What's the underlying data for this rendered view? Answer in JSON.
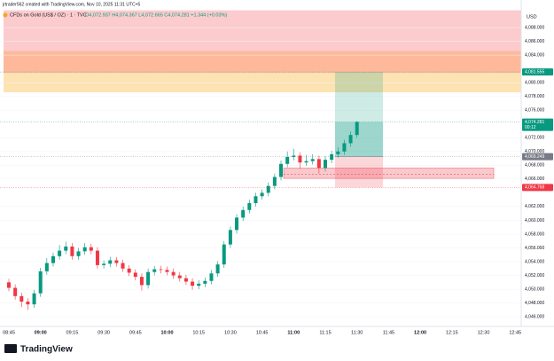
{
  "header": {
    "credit": "jrtrader562 created with TradingView.com, Nov 10, 2025 11:31 UTC+5",
    "legend": "CFDs on Gold (US$ / OZ) · 1 · TVC",
    "ohlc": "O4,072.937 H4,074.367 L4,072.665 C4,074.281 +1.344 (+0.03%)",
    "logo": "TradingView"
  },
  "chart_data": {
    "type": "candlestick",
    "currency": "USD",
    "up_color": "#089981",
    "down_color": "#f23645",
    "open": [
      4051.0,
      4050.2,
      4049.0,
      4048.2,
      4047.8,
      4049.4,
      4052.6,
      4053.8,
      4054.8,
      4055.6,
      4056.2,
      4054.8,
      4055.5,
      4056.1,
      4055.6,
      4053.5,
      4053.7,
      4054.2,
      4053.8,
      4053.0,
      4052.4,
      4051.8,
      4050.6,
      4052.5,
      4052.9,
      4052.8,
      4052.5,
      4052.0,
      4051.6,
      4051.1,
      4050.5,
      4050.8,
      4051.2,
      4052.3,
      4053.6,
      4056.5,
      4058.6,
      4060.4,
      4061.5,
      4062.5,
      4063.5,
      4064.0,
      4065.0,
      4066.3,
      4068.2,
      4069.2,
      4069.4,
      4068.4,
      4068.6,
      4068.9,
      4067.6,
      4068.8,
      4069.6,
      4070.0,
      4071.2,
      4072.4
    ],
    "high": [
      4051.5,
      4050.7,
      4049.5,
      4048.7,
      4049.9,
      4053.1,
      4054.5,
      4055.3,
      4056.4,
      4056.9,
      4056.7,
      4056.0,
      4056.7,
      4056.6,
      4056.1,
      4054.2,
      4054.7,
      4054.7,
      4054.3,
      4053.5,
      4052.9,
      4052.3,
      4053.0,
      4053.4,
      4053.4,
      4053.3,
      4053.0,
      4052.5,
      4052.1,
      4051.6,
      4051.3,
      4051.7,
      4052.8,
      4054.1,
      4057.0,
      4059.1,
      4060.9,
      4062.0,
      4063.0,
      4064.0,
      4064.5,
      4065.5,
      4066.8,
      4068.7,
      4070.0,
      4070.4,
      4069.9,
      4069.5,
      4069.6,
      4069.4,
      4069.3,
      4070.1,
      4070.6,
      4071.7,
      4072.9,
      4074.4
    ],
    "low": [
      4049.7,
      4048.5,
      4047.4,
      4047.0,
      4047.3,
      4048.9,
      4052.1,
      4053.3,
      4054.3,
      4055.1,
      4054.3,
      4054.3,
      4055.0,
      4055.1,
      4053.0,
      4053.0,
      4053.2,
      4053.3,
      4052.5,
      4051.9,
      4051.3,
      4049.8,
      4050.1,
      4052.0,
      4052.3,
      4052.0,
      4051.5,
      4051.1,
      4050.6,
      4049.9,
      4050.0,
      4050.3,
      4050.7,
      4051.8,
      4053.1,
      4056.0,
      4058.1,
      4059.9,
      4061.0,
      4062.0,
      4063.0,
      4063.5,
      4064.5,
      4065.8,
      4067.7,
      4068.7,
      4067.5,
      4067.9,
      4068.1,
      4066.8,
      4067.1,
      4068.3,
      4069.1,
      4069.5,
      4070.7,
      4072.0
    ],
    "close": [
      4050.2,
      4049.0,
      4048.2,
      4047.8,
      4049.4,
      4052.6,
      4053.8,
      4054.8,
      4055.6,
      4056.2,
      4054.8,
      4055.5,
      4056.1,
      4055.6,
      4053.5,
      4053.7,
      4054.2,
      4053.8,
      4053.0,
      4052.4,
      4051.8,
      4050.6,
      4052.5,
      4052.9,
      4052.8,
      4052.5,
      4052.0,
      4051.6,
      4051.1,
      4050.5,
      4050.8,
      4051.2,
      4052.3,
      4053.6,
      4056.5,
      4058.6,
      4060.4,
      4061.5,
      4062.5,
      4063.5,
      4064.0,
      4065.0,
      4066.3,
      4068.2,
      4069.2,
      4069.4,
      4068.4,
      4068.6,
      4068.9,
      4067.6,
      4068.8,
      4069.6,
      4070.0,
      4071.2,
      4072.4,
      4074.3
    ],
    "ylim": [
      4044.6,
      4092
    ],
    "yticks": [
      {
        "value": 4046,
        "label": "4,046.000"
      },
      {
        "value": 4048,
        "label": "4,048.000"
      },
      {
        "value": 4050,
        "label": "4,050.000"
      },
      {
        "value": 4052,
        "label": "4,052.000"
      },
      {
        "value": 4054,
        "label": "4,054.000"
      },
      {
        "value": 4056,
        "label": "4,056.000"
      },
      {
        "value": 4058,
        "label": "4,058.000"
      },
      {
        "value": 4060,
        "label": "4,060.000"
      },
      {
        "value": 4062,
        "label": "4,062.000"
      },
      {
        "value": 4066,
        "label": "4,066.000"
      },
      {
        "value": 4068,
        "label": "4,068.000"
      },
      {
        "value": 4070,
        "label": "4,070.000"
      },
      {
        "value": 4072,
        "label": "4,072.000"
      },
      {
        "value": 4076,
        "label": "4,076.000"
      },
      {
        "value": 4078,
        "label": "4,078.000"
      },
      {
        "value": 4080,
        "label": "4,080.000"
      },
      {
        "value": 4084,
        "label": "4,084.000"
      },
      {
        "value": 4086,
        "label": "4,086.000"
      },
      {
        "value": 4088,
        "label": "4,088.000"
      }
    ],
    "xticks": [
      "08:45",
      "09:00",
      "09:15",
      "09:30",
      "09:45",
      "10:00",
      "10:15",
      "10:30",
      "10:45",
      "11:00",
      "11:15",
      "11:30",
      "11:45",
      "12:00",
      "12:15",
      "12:30",
      "12:45"
    ],
    "zones": [
      {
        "low": 4084.6,
        "high": 4090.5,
        "color": "#fccbcd"
      },
      {
        "low": 4081.4,
        "high": 4084.6,
        "color": "#fdb99a"
      },
      {
        "low": 4078.6,
        "high": 4081.4,
        "color": "#fde3b2"
      }
    ],
    "box": {
      "low": 4066.1,
      "high": 4067.6,
      "mid": 4066.7,
      "color": "#f9c9cc"
    },
    "position": {
      "entry": 4069.249,
      "target": 4081.555,
      "stop": 4064.768,
      "current": 4074.281
    },
    "price_labels": [
      {
        "value": 4081.555,
        "label": "4,081.555",
        "color": "#089981"
      },
      {
        "value": 4074.281,
        "label": "4,074.281",
        "color": "#089981",
        "sub": "00:12"
      },
      {
        "value": 4069.249,
        "label": "4,069.249",
        "color": "#787b86"
      },
      {
        "value": 4064.768,
        "label": "4,064.768",
        "color": "#f23645"
      }
    ]
  }
}
